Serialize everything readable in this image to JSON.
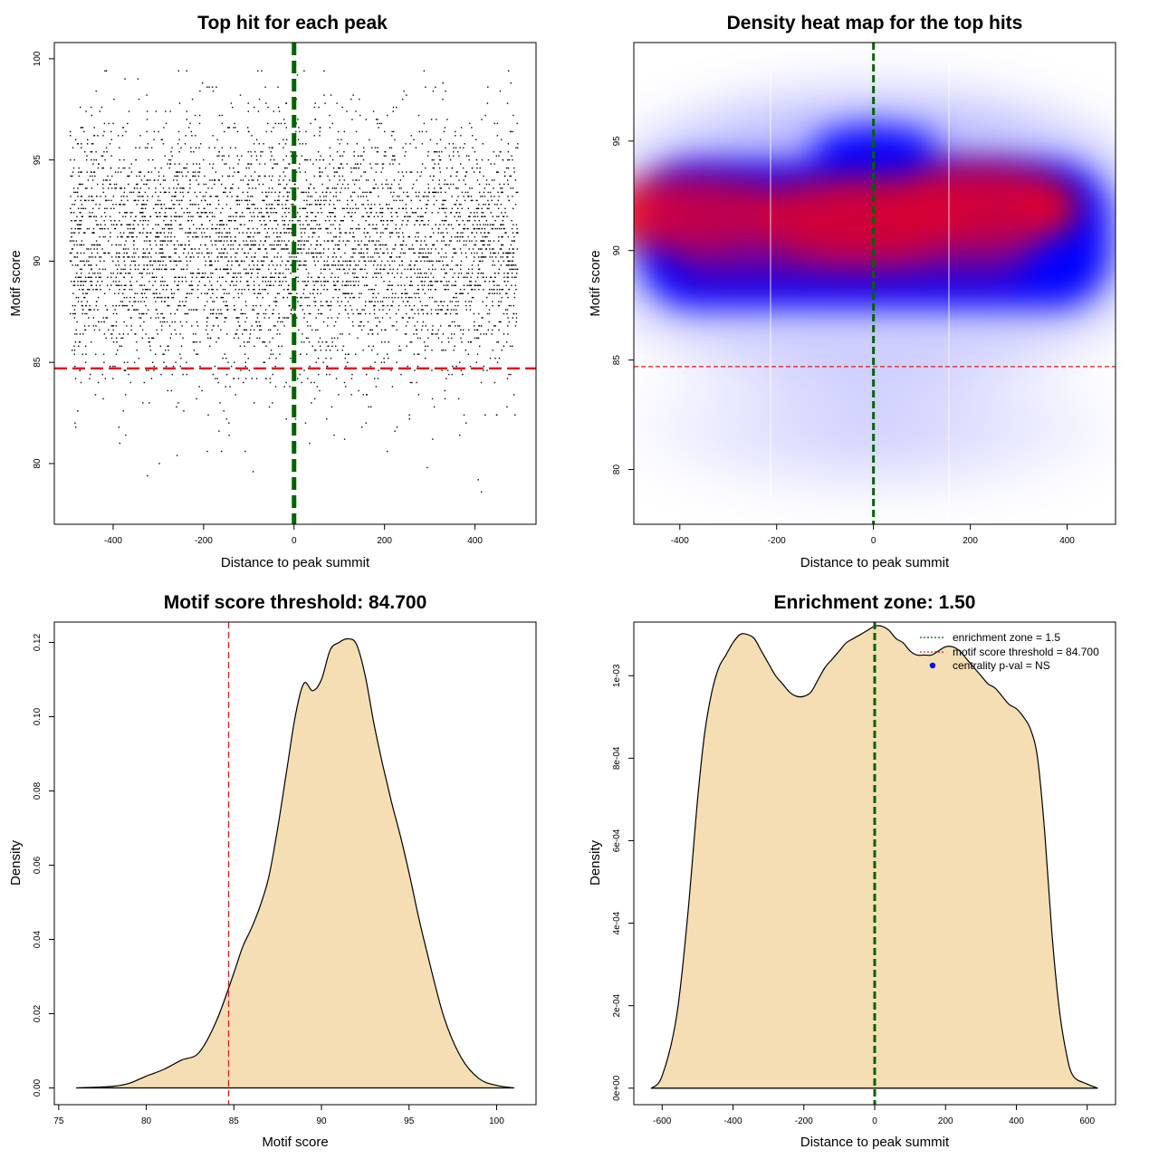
{
  "chart_data": [
    {
      "id": "scatter",
      "type": "scatter",
      "title": "Top hit for each peak",
      "xlabel": "Distance to peak summit",
      "ylabel": "Motif score",
      "xlim": [
        -530,
        535
      ],
      "ylim": [
        77.0,
        100.8
      ],
      "xticks": [
        -400,
        -200,
        0,
        200,
        400
      ],
      "yticks": [
        80,
        85,
        90,
        95,
        100
      ],
      "threshold_y": 84.7,
      "center_x": 0,
      "n_points_approx": 5000,
      "x_range": [
        -495,
        495
      ],
      "score_center": 90.8,
      "score_spread": 3.0,
      "score_min": 77.5,
      "score_max": 99.5,
      "point_color": "#000000",
      "threshold_color": "#e41a1c",
      "center_color": "#006400"
    },
    {
      "id": "heatmap",
      "type": "heatmap",
      "title": "Density heat map for the top hits",
      "xlabel": "Distance to peak summit",
      "ylabel": "Motif score",
      "xlim": [
        -495,
        500
      ],
      "ylim": [
        77.5,
        99.5
      ],
      "xticks": [
        -400,
        -200,
        0,
        200,
        400
      ],
      "yticks": [
        80,
        85,
        90,
        95
      ],
      "threshold_y": 84.7,
      "center_x": 0,
      "hot_spots": [
        {
          "x": -370,
          "y": 91.7,
          "level": 0.85
        },
        {
          "x": -20,
          "y": 91.4,
          "level": 1.0
        },
        {
          "x": 210,
          "y": 92.0,
          "level": 0.95
        }
      ],
      "band_score_range": [
        87.0,
        94.5
      ],
      "colors": {
        "low": "#ffffff",
        "mid": "#0000ff",
        "high": "#ff0000"
      }
    },
    {
      "id": "score_density",
      "type": "area",
      "title": "Motif score threshold: 84.700",
      "xlabel": "Motif score",
      "ylabel": "Density",
      "xlim": [
        74.75,
        102.25
      ],
      "ylim": [
        -0.0045,
        0.1255
      ],
      "xticks": [
        75,
        80,
        85,
        90,
        95,
        100
      ],
      "yticks": [
        0.0,
        0.02,
        0.04,
        0.06,
        0.08,
        0.1,
        0.12
      ],
      "ytick_labels": [
        "0.00",
        "0.02",
        "0.04",
        "0.06",
        "0.08",
        "0.10",
        "0.12"
      ],
      "threshold_x": 84.7,
      "x": [
        76.0,
        78.0,
        79.0,
        80.0,
        81.0,
        82.0,
        83.0,
        84.0,
        85.0,
        85.5,
        86.0,
        86.5,
        87.0,
        87.5,
        88.0,
        88.5,
        89.0,
        89.5,
        90.0,
        90.5,
        91.0,
        91.5,
        92.0,
        92.5,
        93.0,
        93.5,
        94.0,
        94.5,
        95.0,
        95.5,
        96.0,
        97.0,
        98.0,
        99.0,
        100.0,
        101.0
      ],
      "y": [
        0.0,
        0.0004,
        0.0012,
        0.0032,
        0.005,
        0.0075,
        0.0095,
        0.018,
        0.031,
        0.038,
        0.043,
        0.049,
        0.057,
        0.07,
        0.085,
        0.1,
        0.109,
        0.107,
        0.11,
        0.118,
        0.12,
        0.121,
        0.1195,
        0.111,
        0.098,
        0.087,
        0.077,
        0.068,
        0.058,
        0.047,
        0.037,
        0.019,
        0.008,
        0.0025,
        0.0007,
        0.0
      ],
      "fill_color": "#f5deb3",
      "threshold_color": "#e41a1c"
    },
    {
      "id": "distance_density",
      "type": "area",
      "title": "Enrichment zone: 1.50",
      "xlabel": "Distance to peak summit",
      "ylabel": "Density",
      "xlim": [
        -680,
        680
      ],
      "ylim": [
        -4e-05,
        0.00113
      ],
      "xticks": [
        -600,
        -400,
        -200,
        0,
        200,
        400,
        600
      ],
      "yticks": [
        0,
        0.0002,
        0.0004,
        0.0006,
        0.0008,
        0.001
      ],
      "ytick_labels": [
        "0e+00",
        "2e-04",
        "4e-04",
        "6e-04",
        "8e-04",
        "1e-03"
      ],
      "center_x": 0,
      "x": [
        -630,
        -600,
        -560,
        -530,
        -500,
        -480,
        -460,
        -440,
        -420,
        -400,
        -380,
        -360,
        -340,
        -320,
        -300,
        -280,
        -260,
        -240,
        -220,
        -200,
        -180,
        -160,
        -140,
        -120,
        -100,
        -80,
        -60,
        -40,
        -20,
        0,
        20,
        40,
        60,
        80,
        100,
        120,
        140,
        160,
        180,
        200,
        220,
        240,
        260,
        280,
        300,
        320,
        340,
        360,
        380,
        400,
        420,
        440,
        460,
        480,
        500,
        520,
        540,
        560,
        600,
        630
      ],
      "y": [
        0.0,
        3e-05,
        0.00017,
        0.0004,
        0.0007,
        0.00086,
        0.00096,
        0.00102,
        0.00105,
        0.00108,
        0.0011,
        0.0011,
        0.00109,
        0.00106,
        0.00103,
        0.001,
        0.00098,
        0.00096,
        0.00095,
        0.00095,
        0.00096,
        0.00099,
        0.00102,
        0.00104,
        0.00106,
        0.00108,
        0.00109,
        0.0011,
        0.00111,
        0.00112,
        0.00112,
        0.00111,
        0.00109,
        0.00108,
        0.00106,
        0.00105,
        0.00105,
        0.00105,
        0.00106,
        0.00107,
        0.00107,
        0.00106,
        0.00104,
        0.00102,
        0.001,
        0.00098,
        0.00097,
        0.00095,
        0.00093,
        0.00092,
        0.0009,
        0.00087,
        0.0008,
        0.00062,
        0.00038,
        0.0002,
        9e-05,
        3e-05,
        1e-05,
        0.0
      ],
      "fill_color": "#f5deb3",
      "center_color": "#006400",
      "legend": [
        {
          "label": "enrichment zone = 1.5",
          "style": "dotted-line",
          "color": "#006400"
        },
        {
          "label": "motif score threshold = 84.700",
          "style": "dotted-line",
          "color": "#e41a1c"
        },
        {
          "label": "centrality p-val = NS",
          "style": "point",
          "color": "#0000ff"
        }
      ],
      "legend_position": "top-right"
    }
  ]
}
